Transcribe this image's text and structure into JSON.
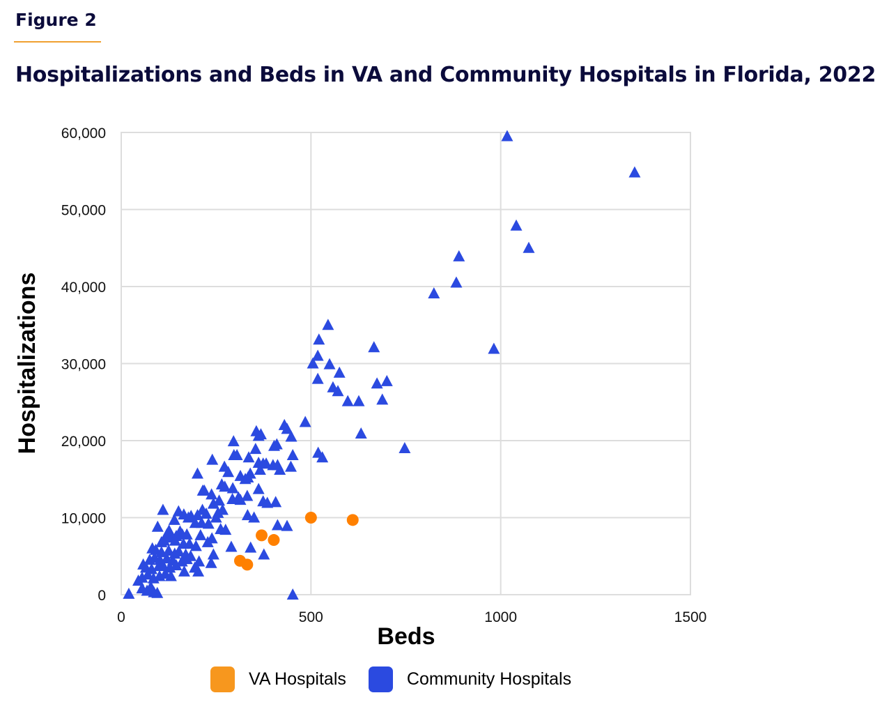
{
  "figure_label": "Figure 2",
  "colors": {
    "accent_rule": "#f0a030",
    "va": "#ff8000",
    "community": "#2b4ae0",
    "legend_va": "#f7971e",
    "legend_community": "#2b4ae0",
    "grid": "#dddddd"
  },
  "chart_data": {
    "type": "scatter",
    "title": "Hospitalizations and Beds in VA and Community Hospitals in Florida, 2022",
    "xlabel": "Beds",
    "ylabel": "Hospitalizations",
    "xlim": [
      0,
      1500
    ],
    "ylim": [
      0,
      60000
    ],
    "x_ticks": [
      0,
      500,
      1000,
      1500
    ],
    "x_tick_labels": [
      "0",
      "500",
      "1000",
      "1500"
    ],
    "y_ticks": [
      0,
      10000,
      20000,
      30000,
      40000,
      50000,
      60000
    ],
    "y_tick_labels": [
      "0",
      "10,000",
      "20,000",
      "30,000",
      "40,000",
      "50,000",
      "60,000"
    ],
    "grid": true,
    "legend_position": "bottom",
    "series": [
      {
        "name": "VA Hospitals",
        "marker": "circle",
        "points": [
          [
            500,
            10000
          ],
          [
            610,
            9700
          ],
          [
            370,
            7700
          ],
          [
            402,
            7100
          ],
          [
            313,
            4400
          ],
          [
            332,
            3900
          ]
        ]
      },
      {
        "name": "Community Hospitals",
        "marker": "triangle",
        "points": [
          [
            1017,
            59500
          ],
          [
            1353,
            54800
          ],
          [
            1041,
            47900
          ],
          [
            1074,
            45000
          ],
          [
            890,
            43900
          ],
          [
            883,
            40500
          ],
          [
            824,
            39100
          ],
          [
            982,
            31900
          ],
          [
            747,
            19000
          ],
          [
            545,
            35000
          ],
          [
            521,
            33100
          ],
          [
            518,
            31000
          ],
          [
            505,
            30000
          ],
          [
            549,
            29900
          ],
          [
            575,
            28800
          ],
          [
            518,
            28000
          ],
          [
            558,
            26900
          ],
          [
            571,
            26400
          ],
          [
            597,
            25100
          ],
          [
            626,
            25100
          ],
          [
            666,
            32100
          ],
          [
            674,
            27400
          ],
          [
            700,
            27700
          ],
          [
            688,
            25300
          ],
          [
            632,
            20900
          ],
          [
            485,
            22400
          ],
          [
            519,
            18400
          ],
          [
            530,
            17800
          ],
          [
            430,
            22000
          ],
          [
            437,
            21500
          ],
          [
            448,
            20500
          ],
          [
            356,
            21200
          ],
          [
            362,
            20600
          ],
          [
            368,
            20800
          ],
          [
            296,
            19900
          ],
          [
            410,
            19500
          ],
          [
            403,
            19300
          ],
          [
            452,
            18100
          ],
          [
            305,
            18100
          ],
          [
            297,
            18100
          ],
          [
            354,
            18900
          ],
          [
            336,
            17800
          ],
          [
            362,
            17100
          ],
          [
            374,
            17000
          ],
          [
            382,
            17000
          ],
          [
            400,
            16800
          ],
          [
            412,
            16800
          ],
          [
            418,
            16200
          ],
          [
            447,
            16600
          ],
          [
            366,
            16200
          ],
          [
            340,
            15700
          ],
          [
            327,
            15000
          ],
          [
            334,
            15200
          ],
          [
            240,
            17500
          ],
          [
            201,
            15700
          ],
          [
            272,
            16600
          ],
          [
            282,
            15900
          ],
          [
            314,
            15400
          ],
          [
            265,
            14300
          ],
          [
            273,
            14000
          ],
          [
            219,
            13500
          ],
          [
            215,
            13500
          ],
          [
            238,
            13000
          ],
          [
            294,
            13800
          ],
          [
            314,
            12300
          ],
          [
            309,
            12600
          ],
          [
            362,
            13700
          ],
          [
            332,
            12800
          ],
          [
            374,
            12100
          ],
          [
            385,
            11900
          ],
          [
            293,
            12400
          ],
          [
            258,
            12200
          ],
          [
            243,
            11800
          ],
          [
            267,
            11000
          ],
          [
            255,
            10600
          ],
          [
            224,
            10500
          ],
          [
            214,
            11000
          ],
          [
            201,
            10300
          ],
          [
            110,
            11000
          ],
          [
            151,
            10800
          ],
          [
            165,
            10400
          ],
          [
            177,
            10000
          ],
          [
            184,
            10200
          ],
          [
            140,
            9700
          ],
          [
            195,
            9300
          ],
          [
            212,
            9300
          ],
          [
            230,
            9200
          ],
          [
            250,
            10000
          ],
          [
            262,
            8500
          ],
          [
            275,
            8400
          ],
          [
            333,
            10300
          ],
          [
            96,
            8800
          ],
          [
            126,
            8300
          ],
          [
            155,
            8200
          ],
          [
            161,
            7800
          ],
          [
            173,
            7800
          ],
          [
            209,
            7700
          ],
          [
            239,
            7300
          ],
          [
            120,
            7800
          ],
          [
            131,
            7400
          ],
          [
            145,
            7600
          ],
          [
            113,
            7000
          ],
          [
            106,
            6800
          ],
          [
            142,
            7000
          ],
          [
            164,
            6600
          ],
          [
            180,
            6600
          ],
          [
            197,
            6300
          ],
          [
            228,
            6800
          ],
          [
            290,
            6200
          ],
          [
            82,
            6000
          ],
          [
            91,
            5800
          ],
          [
            106,
            5500
          ],
          [
            125,
            5700
          ],
          [
            141,
            5300
          ],
          [
            152,
            5600
          ],
          [
            170,
            5200
          ],
          [
            183,
            5000
          ],
          [
            243,
            5200
          ],
          [
            75,
            4500
          ],
          [
            88,
            4800
          ],
          [
            102,
            4500
          ],
          [
            120,
            4700
          ],
          [
            136,
            4400
          ],
          [
            160,
            4300
          ],
          [
            173,
            4600
          ],
          [
            205,
            4300
          ],
          [
            237,
            4100
          ],
          [
            58,
            3900
          ],
          [
            65,
            3500
          ],
          [
            80,
            3300
          ],
          [
            99,
            3700
          ],
          [
            110,
            3800
          ],
          [
            128,
            3500
          ],
          [
            145,
            3800
          ],
          [
            166,
            3000
          ],
          [
            194,
            3500
          ],
          [
            203,
            3000
          ],
          [
            45,
            1800
          ],
          [
            55,
            2200
          ],
          [
            70,
            2600
          ],
          [
            85,
            2100
          ],
          [
            101,
            2400
          ],
          [
            116,
            2700
          ],
          [
            131,
            2400
          ],
          [
            20,
            100
          ],
          [
            55,
            800
          ],
          [
            68,
            500
          ],
          [
            78,
            1000
          ],
          [
            86,
            300
          ],
          [
            95,
            200
          ],
          [
            412,
            9000
          ],
          [
            341,
            6100
          ],
          [
            376,
            5200
          ],
          [
            437,
            8900
          ],
          [
            452,
            0
          ],
          [
            407,
            12000
          ],
          [
            350,
            10000
          ]
        ]
      }
    ]
  }
}
